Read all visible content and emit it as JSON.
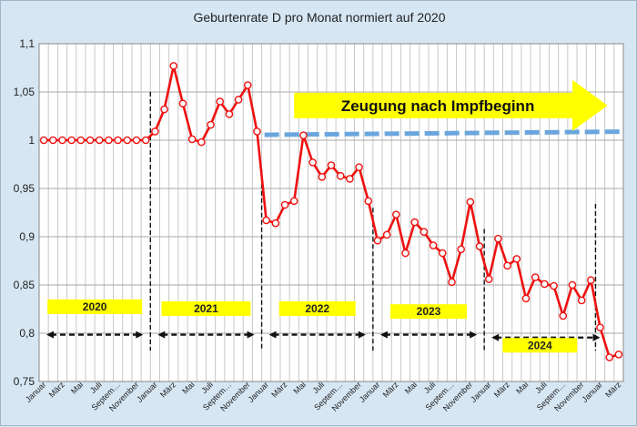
{
  "chart_data": {
    "type": "line",
    "title": "Geburtenrate D pro Monat normiert auf 2020",
    "xlabel": "",
    "ylabel": "",
    "ylim": [
      0.75,
      1.1
    ],
    "yticks": [
      "0,75",
      "0,8",
      "0,85",
      "0,9",
      "0,95",
      "1",
      "1,05",
      "1,1"
    ],
    "grid": true,
    "x_tick_labels": [
      "Januar",
      "März",
      "Mai",
      "Juli",
      "Septem…",
      "November"
    ],
    "series": [
      {
        "color": "#ee1111",
        "values": [
          1.0,
          1.0,
          1.0,
          1.0,
          1.0,
          1.0,
          1.0,
          1.0,
          1.0,
          1.0,
          1.0,
          1.0,
          1.009,
          1.032,
          1.077,
          1.038,
          1.001,
          0.998,
          1.016,
          1.04,
          1.027,
          1.042,
          1.057,
          1.009,
          0.917,
          0.914,
          0.933,
          0.937,
          1.005,
          0.977,
          0.962,
          0.974,
          0.963,
          0.96,
          0.972,
          0.937,
          0.896,
          0.902,
          0.923,
          0.883,
          0.915,
          0.905,
          0.891,
          0.883,
          0.853,
          0.887,
          0.936,
          0.89,
          0.856,
          0.898,
          0.87,
          0.877,
          0.836,
          0.858,
          0.851,
          0.849,
          0.818,
          0.85,
          0.834,
          0.855,
          0.806,
          0.775,
          0.778
        ]
      }
    ],
    "reference_line": {
      "value": 1.007,
      "color": "#6aa6dd"
    },
    "year_labels": [
      "2020",
      "2021",
      "2022",
      "2023",
      "2024"
    ],
    "banner": {
      "text": "Zeugung nach Impfbeginn",
      "color": "#ffff00"
    }
  }
}
